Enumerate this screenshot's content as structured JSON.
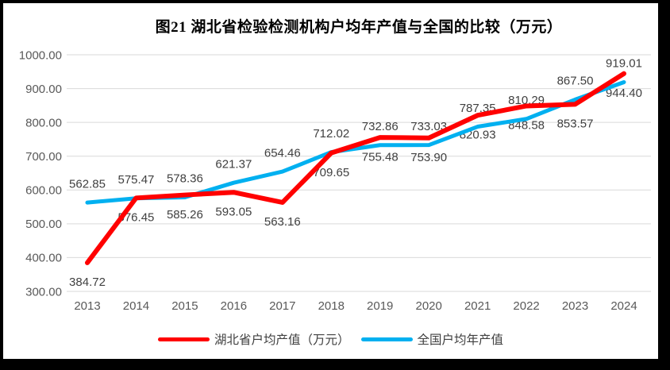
{
  "title": "图21 湖北省检验检测机构户均年产值与全国的比较（万元）",
  "chart_data": {
    "type": "line",
    "title": "图21 湖北省检验检测机构户均年产值与全国的比较（万元）",
    "categories": [
      "2013",
      "2014",
      "2015",
      "2016",
      "2017",
      "2018",
      "2019",
      "2020",
      "2021",
      "2022",
      "2023",
      "2024"
    ],
    "series": [
      {
        "name": "湖北省户均产值（万元）",
        "color": "#FF0000",
        "stroke_width": 6,
        "label_position": "below",
        "values": [
          384.72,
          576.45,
          585.26,
          593.05,
          563.16,
          709.65,
          755.48,
          753.9,
          820.93,
          848.58,
          853.57,
          944.4
        ]
      },
      {
        "name": "全国户均年产值",
        "color": "#00B0F0",
        "stroke_width": 5,
        "label_position": "above",
        "values": [
          562.85,
          575.47,
          578.36,
          621.37,
          654.46,
          712.02,
          732.86,
          733.03,
          787.35,
          810.29,
          867.5,
          919.01
        ]
      }
    ],
    "ylim": [
      300,
      1000
    ],
    "ytick_step": 100,
    "value_decimals": 2,
    "grid": true,
    "legend_position": "bottom",
    "xlabel": "",
    "ylabel": "",
    "colors": {
      "grid": "#D9D9D9",
      "axis_text": "#595959",
      "data_label_text": "#404040",
      "frame_border": "#000000"
    }
  }
}
